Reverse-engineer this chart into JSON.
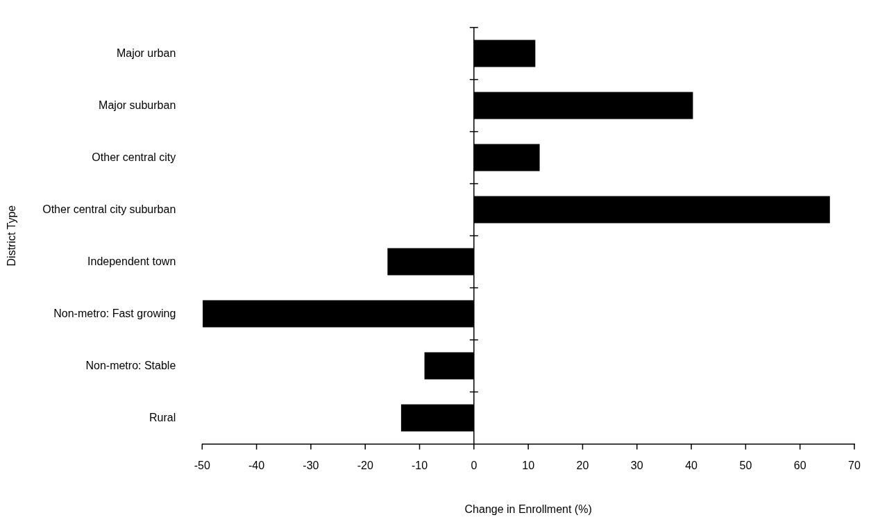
{
  "chart_data": {
    "type": "bar",
    "orientation": "horizontal",
    "xlabel": "Change in Enrollment (%)",
    "ylabel": "District Type",
    "categories": [
      "Major urban",
      "Major suburban",
      "Other central city",
      "Other central city suburban",
      "Independent town",
      "Non-metro: Fast growing",
      "Non-metro: Stable",
      "Rural"
    ],
    "values": [
      11.3,
      40.3,
      12.1,
      65.5,
      -15.9,
      -49.9,
      -9.1,
      -13.4
    ],
    "color": "#000000",
    "xlim": [
      -50,
      70
    ],
    "xticks": [
      -50,
      -40,
      -30,
      -20,
      -10,
      0,
      10,
      20,
      30,
      40,
      50,
      60,
      70
    ],
    "legend": false
  }
}
